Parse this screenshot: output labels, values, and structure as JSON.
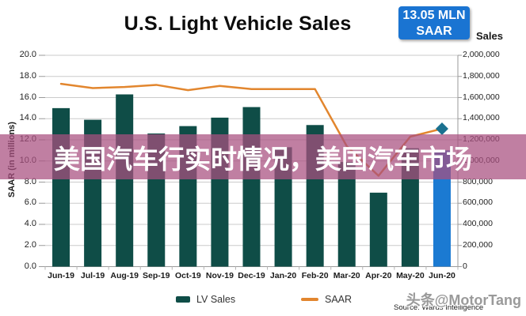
{
  "header": {
    "title": "U.S. Light Vehicle Sales",
    "badge": {
      "line1": "13.05 MLN",
      "line2": "SAAR"
    }
  },
  "axes": {
    "left_label": "SAAR (in millions)",
    "right_label": "Sales"
  },
  "overlay": {
    "text": "美国汽车行实时情况，美国汽车市场"
  },
  "footer": {
    "source": "Source: Wards Intelligence",
    "watermark": "头条@MotorTang"
  },
  "colors": {
    "bar_teal": "#0f4d47",
    "bar_highlight_blue": "#1b7ad2",
    "line_orange": "#e2862e",
    "diamond_marker": "#1a7190",
    "badge_blue": "#1a74d2",
    "overlay_mauve": "#a85080",
    "gridline_gray": "#cbcbcb"
  },
  "chart_data": {
    "type": "bar",
    "subtype": "bar-line-combo",
    "title": "U.S. Light Vehicle Sales",
    "categories": [
      "Jun-19",
      "Jul-19",
      "Aug-19",
      "Sep-19",
      "Oct-19",
      "Nov-19",
      "Dec-19",
      "Jan-20",
      "Feb-20",
      "Mar-20",
      "Apr-20",
      "May-20",
      "Jun-20"
    ],
    "series": [
      {
        "name": "LV Sales",
        "type": "bar",
        "axis": "right",
        "color": "#0f4d47",
        "highlight_index": 12,
        "highlight_color": "#1b7ad2",
        "values": [
          1500000,
          1390000,
          1630000,
          1260000,
          1330000,
          1410000,
          1510000,
          1130000,
          1340000,
          990000,
          700000,
          1120000,
          1100000
        ]
      },
      {
        "name": "SAAR",
        "type": "line",
        "axis": "left",
        "color": "#e2862e",
        "end_marker": "diamond",
        "marker_color": "#1a7190",
        "values": [
          17.3,
          16.9,
          17.0,
          17.2,
          16.7,
          17.1,
          16.8,
          16.8,
          16.8,
          11.4,
          8.6,
          12.3,
          13.05
        ]
      }
    ],
    "left_axis": {
      "label": "SAAR (in millions)",
      "min": 0,
      "max": 20,
      "step": 2,
      "ticks": [
        "0.0",
        "2.0",
        "4.0",
        "6.0",
        "8.0",
        "10.0",
        "12.0",
        "14.0",
        "16.0",
        "18.0",
        "20.0"
      ]
    },
    "right_axis": {
      "label": "Sales",
      "min": 0,
      "max": 2000000,
      "step": 200000,
      "ticks": [
        "0",
        "200,000",
        "400,000",
        "600,000",
        "800,000",
        "1,000,000",
        "1,200,000",
        "1,400,000",
        "1,600,000",
        "1,800,000",
        "2,000,000"
      ]
    },
    "grid": true,
    "legend_position": "bottom",
    "annotations": [
      "13.05 MLN SAAR"
    ]
  }
}
